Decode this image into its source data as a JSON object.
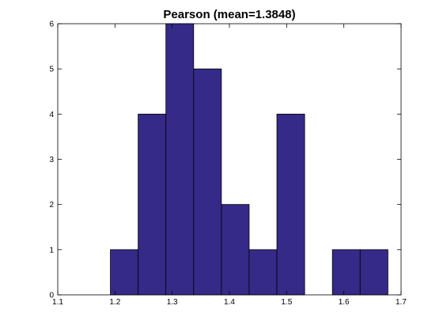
{
  "chart_data": {
    "type": "bar",
    "title": "Pearson (mean=1.3848)",
    "xlabel": "",
    "ylabel": "",
    "xlim": [
      1.1,
      1.7
    ],
    "ylim": [
      0,
      6
    ],
    "xticks": [
      "1.1",
      "1.2",
      "1.3",
      "1.4",
      "1.5",
      "1.6",
      "1.7"
    ],
    "yticks": [
      "0",
      "1",
      "2",
      "3",
      "4",
      "5",
      "6"
    ],
    "xtick_values": [
      1.1,
      1.2,
      1.3,
      1.4,
      1.5,
      1.6,
      1.7
    ],
    "ytick_values": [
      0,
      1,
      2,
      3,
      4,
      5,
      6
    ],
    "bins": [
      {
        "x0": 1.192,
        "x1": 1.2405,
        "value": 1
      },
      {
        "x0": 1.2405,
        "x1": 1.289,
        "value": 4
      },
      {
        "x0": 1.289,
        "x1": 1.3375,
        "value": 6
      },
      {
        "x0": 1.3375,
        "x1": 1.386,
        "value": 5
      },
      {
        "x0": 1.386,
        "x1": 1.4345,
        "value": 2
      },
      {
        "x0": 1.4345,
        "x1": 1.483,
        "value": 1
      },
      {
        "x0": 1.483,
        "x1": 1.5315,
        "value": 4
      },
      {
        "x0": 1.5315,
        "x1": 1.58,
        "value": 0
      },
      {
        "x0": 1.58,
        "x1": 1.6285,
        "value": 1
      },
      {
        "x0": 1.6285,
        "x1": 1.677,
        "value": 1
      }
    ],
    "grid": false,
    "colors": {
      "bar_fill": "#352a87",
      "bar_edge": "#000000",
      "axis": "#000000"
    }
  }
}
